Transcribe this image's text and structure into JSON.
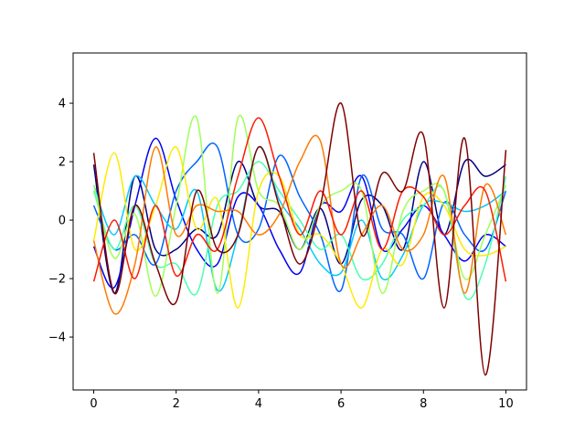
{
  "chart_data": {
    "type": "line",
    "x": [
      0,
      0.5,
      1,
      1.5,
      2,
      2.5,
      3,
      3.5,
      4,
      4.5,
      5,
      5.5,
      6,
      6.5,
      7,
      7.5,
      8,
      8.5,
      9,
      9.5,
      10
    ],
    "xlim": [
      -0.5,
      10.5
    ],
    "xticks": [
      0,
      2,
      4,
      6,
      8,
      10
    ],
    "ylim": [
      -5.81,
      5.72
    ],
    "yticks": [
      {
        "value": -4,
        "label": "−4"
      },
      {
        "value": -2,
        "label": "−2"
      },
      0,
      2,
      4
    ],
    "grid": false,
    "series": [
      {
        "color": "#00007f",
        "values": [
          1.9,
          -2.5,
          1.5,
          -1,
          -1,
          -0.3,
          -0.5,
          2.0,
          0.5,
          0.3,
          -1.0,
          0.4,
          -1.5,
          0.7,
          0.5,
          -1,
          2.0,
          -0.5,
          2.0,
          1.5,
          1.9
        ]
      },
      {
        "color": "#0000f1",
        "values": [
          -0.9,
          -2.3,
          0.5,
          2.8,
          0.7,
          -1.0,
          -1.5,
          0.8,
          0.5,
          -1.0,
          -1.8,
          0.5,
          0.3,
          1.5,
          -1.0,
          -0.3,
          0.5,
          -0.5,
          -1.4,
          -0.5,
          -0.9
        ]
      },
      {
        "color": "#0064ff",
        "values": [
          0.5,
          -1.0,
          -0.5,
          -1.5,
          1.0,
          2.0,
          2.5,
          -0.5,
          -0.3,
          2.2,
          0.8,
          -0.5,
          -2.4,
          1.5,
          -0.3,
          -0.5,
          -2.0,
          0.6,
          -0.5,
          -1.0,
          1.0
        ]
      },
      {
        "color": "#00c8ff",
        "values": [
          1.2,
          -0.5,
          1.5,
          0.5,
          -0.3,
          1.0,
          -2.4,
          -0.5,
          2.5,
          0.7,
          -0.3,
          -1.5,
          -1.8,
          0.0,
          -2.0,
          -1.2,
          0.5,
          0.6,
          0.3,
          0.5,
          1.0
        ]
      },
      {
        "color": "#4affb0",
        "values": [
          1.0,
          -1.0,
          0.5,
          -1.5,
          -1.5,
          -2.5,
          0.5,
          1.0,
          2.0,
          1.0,
          0.0,
          -1.0,
          -0.5,
          -2.0,
          -1.5,
          0.0,
          0.5,
          1.0,
          -2.6,
          -1.5,
          1.5
        ]
      },
      {
        "color": "#9fff57",
        "values": [
          1.2,
          -1.3,
          0.2,
          -2.6,
          0.5,
          3.5,
          -2.5,
          3.5,
          1.0,
          0.5,
          -1.0,
          0.5,
          1.0,
          1.0,
          -2.5,
          0.3,
          1.0,
          1.0,
          -2.0,
          -0.5,
          1.2
        ]
      },
      {
        "color": "#ffea00",
        "values": [
          -0.7,
          2.3,
          -1.0,
          0.5,
          2.5,
          -0.3,
          0.7,
          -3.0,
          1.0,
          1.5,
          -0.5,
          -0.5,
          -1.5,
          -3.0,
          -1.0,
          -1.5,
          0.8,
          0.5,
          -1.0,
          -1.2,
          -0.9
        ]
      },
      {
        "color": "#ff7a00",
        "values": [
          -0.7,
          -3.2,
          -1.5,
          2.5,
          -0.5,
          0.5,
          0.3,
          0.3,
          -0.5,
          0.2,
          2.0,
          2.7,
          -1.5,
          -0.5,
          0.5,
          -1.0,
          -0.5,
          1.5,
          -2.5,
          1.2,
          -0.5
        ]
      },
      {
        "color": "#ff1a00",
        "values": [
          -2.1,
          0.0,
          -2.0,
          0.5,
          -1.9,
          -0.5,
          -1.0,
          1.5,
          3.5,
          1.5,
          -0.5,
          1.0,
          -0.5,
          1.0,
          -1.0,
          1.0,
          0.8,
          -0.5,
          0.5,
          1.0,
          -2.1
        ]
      },
      {
        "color": "#7f0000",
        "values": [
          2.3,
          -2.5,
          0.5,
          -1.5,
          -2.8,
          1.0,
          -1.0,
          -0.5,
          2.5,
          0.5,
          -1.5,
          0.5,
          4.0,
          -0.5,
          1.6,
          1.0,
          2.9,
          -3.0,
          2.8,
          -5.3,
          2.4
        ]
      }
    ]
  }
}
